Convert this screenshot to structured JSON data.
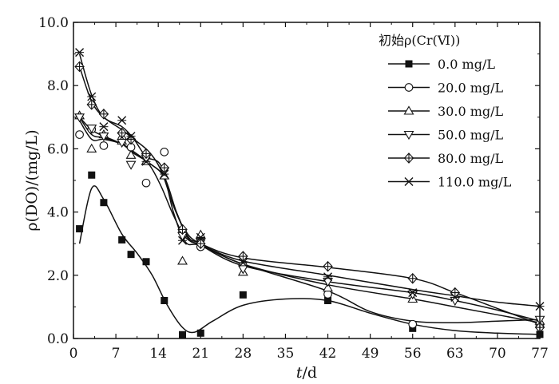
{
  "chart_data": {
    "type": "scatter",
    "xlabel_var": "t",
    "xlabel_unit": "/d",
    "ylabel": "ρ(DO)/(mg/L)",
    "xlim": [
      0,
      77
    ],
    "ylim": [
      0,
      10
    ],
    "x_ticks": [
      "0",
      "7",
      "14",
      "21",
      "28",
      "35",
      "42",
      "49",
      "56",
      "63",
      "70",
      "77"
    ],
    "y_ticks": [
      "0.0",
      "2.0",
      "4.0",
      "6.0",
      "8.0",
      "10.0"
    ],
    "grid": false,
    "legend_position": "top-right",
    "legend_title": "初始ρ(Cr(Ⅵ))",
    "series": [
      {
        "name": "0.0 mg/L",
        "marker": "square-filled",
        "points": [
          [
            1,
            3.47
          ],
          [
            3,
            5.17
          ],
          [
            5,
            4.3
          ],
          [
            8,
            3.12
          ],
          [
            9.5,
            2.66
          ],
          [
            12,
            2.43
          ],
          [
            15,
            1.2
          ],
          [
            18,
            0.12
          ],
          [
            21,
            0.17
          ],
          [
            28,
            1.38
          ],
          [
            42,
            1.2
          ],
          [
            56,
            0.32
          ],
          [
            77,
            0.13
          ]
        ]
      },
      {
        "name": "20.0 mg/L",
        "marker": "circle-open",
        "points": [
          [
            1,
            6.45
          ],
          [
            3,
            6.62
          ],
          [
            5,
            6.1
          ],
          [
            8,
            6.3
          ],
          [
            9.5,
            6.05
          ],
          [
            12,
            4.92
          ],
          [
            15,
            5.9
          ],
          [
            18,
            3.4
          ],
          [
            21,
            2.9
          ],
          [
            28,
            2.3
          ],
          [
            42,
            1.4
          ],
          [
            56,
            0.45
          ],
          [
            77,
            0.4
          ]
        ]
      },
      {
        "name": "30.0 mg/L",
        "marker": "triangle-up-open",
        "points": [
          [
            1,
            7.05
          ],
          [
            3,
            6.0
          ],
          [
            5,
            6.45
          ],
          [
            8,
            6.25
          ],
          [
            9.5,
            5.8
          ],
          [
            12,
            5.6
          ],
          [
            15,
            5.15
          ],
          [
            18,
            2.45
          ],
          [
            21,
            3.28
          ],
          [
            28,
            2.1
          ],
          [
            42,
            1.6
          ],
          [
            56,
            1.25
          ],
          [
            77,
            0.55
          ]
        ]
      },
      {
        "name": "50.0 mg/L",
        "marker": "triangle-down-open",
        "points": [
          [
            1,
            7.0
          ],
          [
            3,
            6.65
          ],
          [
            5,
            6.4
          ],
          [
            8,
            6.2
          ],
          [
            9.5,
            5.5
          ],
          [
            12,
            5.7
          ],
          [
            15,
            5.3
          ],
          [
            18,
            3.25
          ],
          [
            21,
            3.05
          ],
          [
            28,
            2.2
          ],
          [
            42,
            1.8
          ],
          [
            56,
            1.4
          ],
          [
            63,
            1.2
          ],
          [
            77,
            0.6
          ]
        ]
      },
      {
        "name": "80.0 mg/L",
        "marker": "diamond-cross-open",
        "points": [
          [
            1,
            8.6
          ],
          [
            3,
            7.4
          ],
          [
            5,
            7.1
          ],
          [
            8,
            6.5
          ],
          [
            9.5,
            6.3
          ],
          [
            12,
            5.85
          ],
          [
            15,
            5.4
          ],
          [
            18,
            3.45
          ],
          [
            21,
            3.0
          ],
          [
            28,
            2.6
          ],
          [
            42,
            2.28
          ],
          [
            56,
            1.9
          ],
          [
            63,
            1.45
          ],
          [
            77,
            0.35
          ]
        ]
      },
      {
        "name": "110.0 mg/L",
        "marker": "x-cross",
        "points": [
          [
            1,
            9.05
          ],
          [
            3,
            7.65
          ],
          [
            5,
            6.7
          ],
          [
            8,
            6.9
          ],
          [
            9.5,
            6.4
          ],
          [
            12,
            5.6
          ],
          [
            15,
            5.2
          ],
          [
            18,
            3.1
          ],
          [
            21,
            3.2
          ],
          [
            28,
            2.4
          ],
          [
            42,
            1.95
          ],
          [
            56,
            1.45
          ],
          [
            63,
            1.3
          ],
          [
            77,
            1.02
          ]
        ]
      }
    ],
    "fit_curves": [
      {
        "series": "0.0 mg/L",
        "points": [
          [
            1,
            3.0
          ],
          [
            3,
            4.75
          ],
          [
            5,
            4.4
          ],
          [
            8,
            3.3
          ],
          [
            10.5,
            2.7
          ],
          [
            13,
            2.0
          ],
          [
            15.5,
            1.05
          ],
          [
            18,
            0.35
          ],
          [
            20,
            0.2
          ],
          [
            23,
            0.55
          ],
          [
            28,
            1.05
          ],
          [
            35,
            1.25
          ],
          [
            42,
            1.2
          ],
          [
            49,
            0.8
          ],
          [
            56,
            0.45
          ],
          [
            63,
            0.25
          ],
          [
            70,
            0.17
          ],
          [
            77,
            0.13
          ]
        ]
      },
      {
        "series": "20.0 mg/L",
        "points": [
          [
            1,
            6.9
          ],
          [
            3,
            6.3
          ],
          [
            5,
            6.3
          ],
          [
            8,
            6.15
          ],
          [
            10,
            5.9
          ],
          [
            12.5,
            5.5
          ],
          [
            14.5,
            4.8
          ],
          [
            16.5,
            3.9
          ],
          [
            18.5,
            3.2
          ],
          [
            21,
            2.95
          ],
          [
            28,
            2.35
          ],
          [
            42,
            1.5
          ],
          [
            49,
            0.85
          ],
          [
            56,
            0.55
          ],
          [
            63,
            0.5
          ],
          [
            70,
            0.55
          ],
          [
            77,
            0.6
          ]
        ]
      },
      {
        "series": "30.0 mg/L",
        "points": [
          [
            1,
            7.0
          ],
          [
            3,
            6.45
          ],
          [
            5,
            6.35
          ],
          [
            8,
            6.15
          ],
          [
            10,
            5.9
          ],
          [
            12.5,
            5.55
          ],
          [
            15,
            5.1
          ],
          [
            17,
            4.0
          ],
          [
            19,
            3.2
          ],
          [
            21,
            3.0
          ],
          [
            28,
            2.35
          ],
          [
            42,
            1.7
          ],
          [
            56,
            1.25
          ],
          [
            63,
            1.0
          ],
          [
            70,
            0.75
          ],
          [
            77,
            0.5
          ]
        ]
      },
      {
        "series": "50.0 mg/L",
        "points": [
          [
            1,
            7.0
          ],
          [
            3,
            6.6
          ],
          [
            5,
            6.4
          ],
          [
            8,
            6.15
          ],
          [
            10,
            5.85
          ],
          [
            12.5,
            5.55
          ],
          [
            15,
            5.1
          ],
          [
            17,
            4.0
          ],
          [
            19,
            3.15
          ],
          [
            21,
            2.95
          ],
          [
            28,
            2.3
          ],
          [
            42,
            1.8
          ],
          [
            56,
            1.45
          ],
          [
            63,
            1.2
          ],
          [
            70,
            0.9
          ],
          [
            77,
            0.55
          ]
        ]
      },
      {
        "series": "80.0 mg/L",
        "points": [
          [
            1,
            8.6
          ],
          [
            3,
            7.5
          ],
          [
            5,
            7.0
          ],
          [
            8,
            6.6
          ],
          [
            10,
            6.3
          ],
          [
            12.5,
            5.9
          ],
          [
            14.5,
            5.3
          ],
          [
            16.5,
            4.2
          ],
          [
            18.5,
            3.4
          ],
          [
            21,
            3.0
          ],
          [
            28,
            2.55
          ],
          [
            42,
            2.25
          ],
          [
            56,
            1.9
          ],
          [
            63,
            1.45
          ],
          [
            70,
            0.95
          ],
          [
            77,
            0.45
          ]
        ]
      },
      {
        "series": "110.0 mg/L",
        "points": [
          [
            1,
            9.0
          ],
          [
            3,
            7.7
          ],
          [
            5,
            7.0
          ],
          [
            8,
            6.7
          ],
          [
            10,
            6.3
          ],
          [
            12,
            5.75
          ],
          [
            14.5,
            5.45
          ],
          [
            16.5,
            4.0
          ],
          [
            18.5,
            3.05
          ],
          [
            21,
            2.95
          ],
          [
            28,
            2.45
          ],
          [
            42,
            2.0
          ],
          [
            56,
            1.55
          ],
          [
            63,
            1.35
          ],
          [
            70,
            1.15
          ],
          [
            77,
            1.02
          ]
        ]
      }
    ]
  }
}
